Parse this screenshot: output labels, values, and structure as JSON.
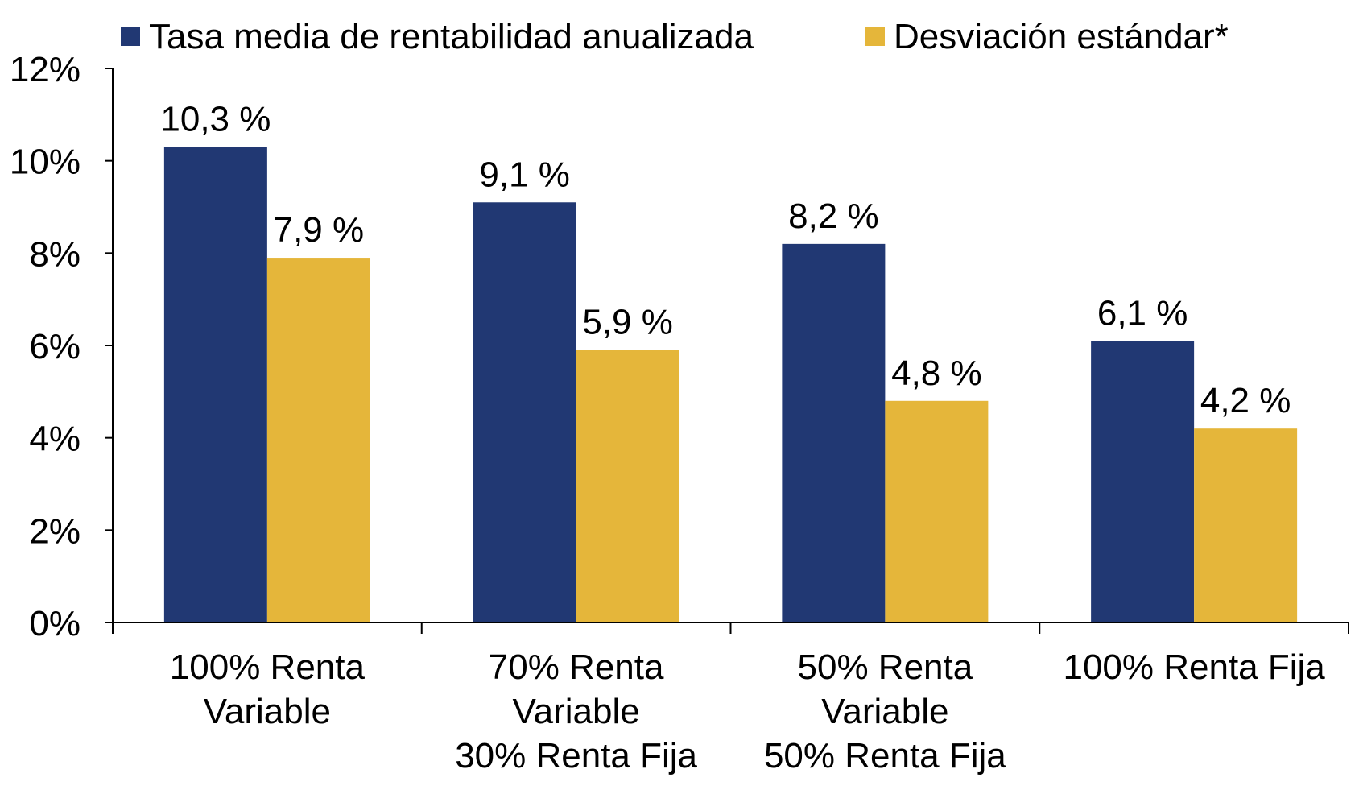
{
  "chart_data": {
    "type": "bar",
    "title": "",
    "xlabel": "",
    "ylabel": "",
    "ylim": [
      0,
      12
    ],
    "yticks": [
      0,
      2,
      4,
      6,
      8,
      10,
      12
    ],
    "ytick_labels": [
      "0%",
      "2%",
      "4%",
      "6%",
      "8%",
      "10%",
      "12%"
    ],
    "grid": false,
    "legend_position": "top",
    "categories": [
      [
        "100% Renta",
        "Variable"
      ],
      [
        "70% Renta",
        "Variable",
        "30% Renta Fija"
      ],
      [
        "50% Renta",
        "Variable",
        "50% Renta Fija"
      ],
      [
        "100% Renta Fija"
      ]
    ],
    "series": [
      {
        "name": "Tasa media de rentabilidad anualizada",
        "color": "#213873",
        "values": [
          10.3,
          9.1,
          8.2,
          6.1
        ],
        "labels": [
          "10,3 %",
          "9,1 %",
          "8,2 %",
          "6,1 %"
        ]
      },
      {
        "name": "Desviación estándar*",
        "color": "#E5B63A",
        "values": [
          7.9,
          5.9,
          4.8,
          4.2
        ],
        "labels": [
          "7,9 %",
          "5,9 %",
          "4,8 %",
          "4,2 %"
        ]
      }
    ]
  }
}
